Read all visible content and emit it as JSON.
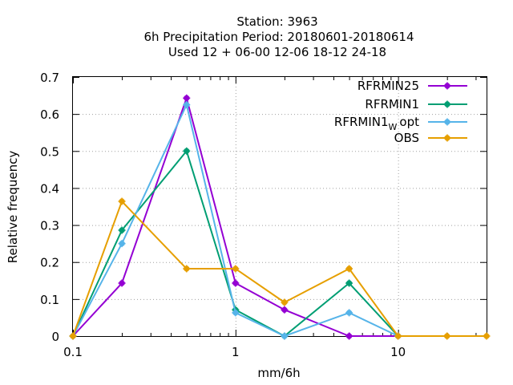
{
  "chart_data": {
    "type": "line",
    "title_lines": [
      "Station:     3963",
      "6h Precipitation  Period: 20180601-20180614",
      "Used  12 + 06-00 12-06 18-12 24-18"
    ],
    "xlabel": "mm/6h",
    "ylabel": "Relative frequency",
    "xscale": "log",
    "xlim": [
      0.1,
      35
    ],
    "ylim": [
      0,
      0.7
    ],
    "x_ticks": [
      {
        "value": 0.1,
        "label": "0.1"
      },
      {
        "value": 1,
        "label": "1"
      },
      {
        "value": 10,
        "label": "10"
      }
    ],
    "y_ticks": [
      {
        "value": 0,
        "label": "0"
      },
      {
        "value": 0.1,
        "label": "0.1"
      },
      {
        "value": 0.2,
        "label": "0.2"
      },
      {
        "value": 0.3,
        "label": "0.3"
      },
      {
        "value": 0.4,
        "label": "0.4"
      },
      {
        "value": 0.5,
        "label": "0.5"
      },
      {
        "value": 0.6,
        "label": "0.6"
      },
      {
        "value": 0.7,
        "label": "0.7"
      }
    ],
    "grid": true,
    "legend_position": "top-right",
    "x": [
      0.1,
      0.2,
      0.5,
      1,
      2,
      5,
      10,
      20,
      35
    ],
    "series": [
      {
        "name": "RFRMIN25",
        "name_main": "RFRMIN25",
        "name_sub": "",
        "name_tail": "",
        "color": "#9400d3",
        "values": [
          0,
          0.143,
          0.643,
          0.143,
          0.071,
          0,
          0,
          null,
          null
        ]
      },
      {
        "name": "RFRMIN1",
        "name_main": "RFRMIN1",
        "name_sub": "",
        "name_tail": "",
        "color": "#009e73",
        "values": [
          0,
          0.286,
          0.5,
          0.071,
          0,
          0.143,
          0,
          null,
          null
        ]
      },
      {
        "name": "RFRMIN1 W opt",
        "name_main": "RFRMIN1",
        "name_sub": "W",
        "name_tail": "opt",
        "color": "#56b4e9",
        "values": [
          0,
          0.25,
          0.625,
          0.063,
          0,
          0.063,
          0,
          null,
          null
        ]
      },
      {
        "name": "OBS",
        "name_main": "OBS",
        "name_sub": "",
        "name_tail": "",
        "color": "#e69f00",
        "values": [
          0,
          0.364,
          0.182,
          0.182,
          0.091,
          0.182,
          0,
          0,
          0
        ]
      }
    ]
  }
}
